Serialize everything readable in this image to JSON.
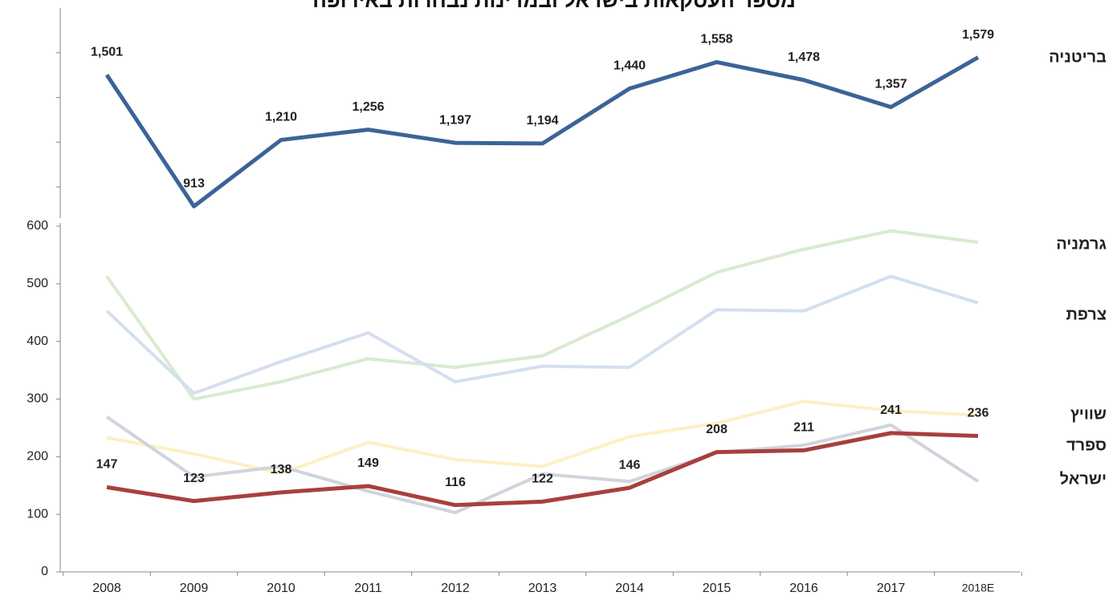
{
  "chart_data": {
    "type": "line",
    "title": "מספר העסקאות בישראל ובמדינות נבחרות באירופה",
    "categories": [
      "2008",
      "2009",
      "2010",
      "2011",
      "2012",
      "2013",
      "2014",
      "2015",
      "2016",
      "2017",
      "2018E"
    ],
    "ylim": [
      0,
      600
    ],
    "yticks": [
      0,
      100,
      200,
      300,
      400,
      500,
      600
    ],
    "upper_ylim": [
      860,
      1800
    ],
    "upper_yticks": [
      1000,
      1200,
      1400,
      1600
    ],
    "series": [
      {
        "name": "גרמניה",
        "color": "#d9ead0",
        "label_color": "#6a9a4a",
        "values": [
          513,
          300,
          330,
          370,
          355,
          375,
          445,
          520,
          560,
          592,
          572
        ]
      },
      {
        "name": "צרפת",
        "color": "#d4dff0",
        "label_color": "#3b6497",
        "values": [
          453,
          310,
          365,
          415,
          330,
          357,
          355,
          455,
          453,
          513,
          467
        ]
      },
      {
        "name": "שוויץ",
        "color": "#fdf0c4",
        "label_color": "#c0652a",
        "values": [
          233,
          205,
          171,
          225,
          195,
          183,
          235,
          258,
          296,
          280,
          272
        ]
      },
      {
        "name": "ספרד",
        "color": "#cfd4dc",
        "label_color": "#404a56",
        "values": [
          269,
          165,
          183,
          140,
          103,
          170,
          157,
          207,
          220,
          255,
          157
        ]
      },
      {
        "name": "ישראל",
        "color": "#a8403c",
        "label_color": "#c00000",
        "values": [
          147,
          123,
          138,
          149,
          116,
          122,
          146,
          208,
          211,
          241,
          236
        ]
      },
      {
        "name": "בריטניה",
        "color": "#3b6497",
        "label_color": "#3b6497",
        "axis": "upper",
        "values": [
          1501,
          913,
          1210,
          1256,
          1197,
          1194,
          1440,
          1558,
          1478,
          1357,
          1579
        ],
        "value_labels": [
          "1,501",
          "913",
          "1,210",
          "1,256",
          "1,197",
          "1,194",
          "1,440",
          "1,558",
          "1,478",
          "1,357",
          "1,579"
        ]
      }
    ]
  }
}
